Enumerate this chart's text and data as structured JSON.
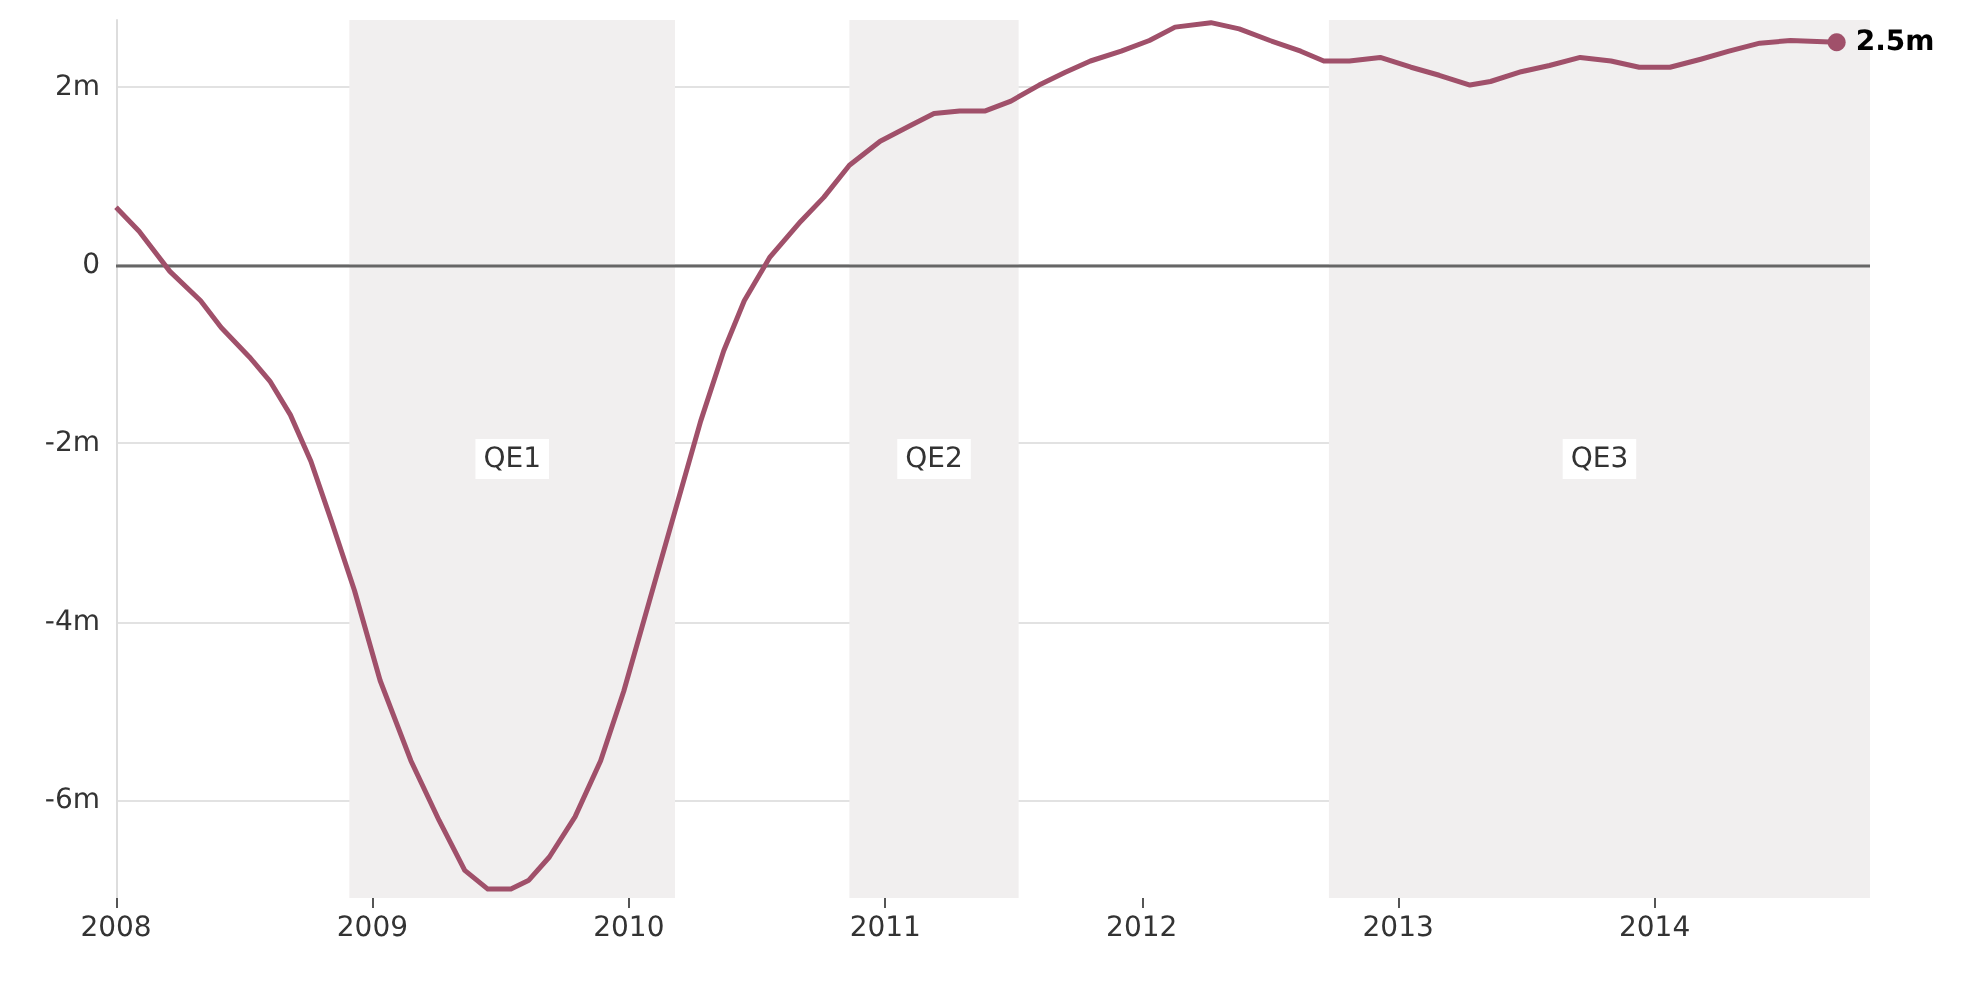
{
  "chart_data": {
    "type": "line",
    "x": [
      2008.0,
      2008.09,
      2008.21,
      2008.33,
      2008.41,
      2008.52,
      2008.6,
      2008.68,
      2008.76,
      2008.84,
      2008.93,
      2009.03,
      2009.15,
      2009.26,
      2009.36,
      2009.45,
      2009.54,
      2009.61,
      2009.69,
      2009.79,
      2009.89,
      2009.98,
      2010.08,
      2010.18,
      2010.28,
      2010.37,
      2010.45,
      2010.55,
      2010.67,
      2010.76,
      2010.86,
      2010.98,
      2011.1,
      2011.19,
      2011.29,
      2011.39,
      2011.49,
      2011.6,
      2011.7,
      2011.8,
      2011.92,
      2012.03,
      2012.13,
      2012.27,
      2012.38,
      2012.5,
      2012.62,
      2012.71,
      2012.81,
      2012.93,
      2013.05,
      2013.16,
      2013.28,
      2013.36,
      2013.48,
      2013.59,
      2013.71,
      2013.83,
      2013.94,
      2014.06,
      2014.18,
      2014.29,
      2014.41,
      2014.53,
      2014.71
    ],
    "series": [
      {
        "color": "#a0506a",
        "values": [
          0.65,
          0.38,
          -0.07,
          -0.4,
          -0.7,
          -1.03,
          -1.3,
          -1.68,
          -2.2,
          -2.87,
          -3.65,
          -4.66,
          -5.56,
          -6.23,
          -6.79,
          -7.0,
          -7.0,
          -6.9,
          -6.64,
          -6.19,
          -5.56,
          -4.78,
          -3.77,
          -2.76,
          -1.75,
          -0.96,
          -0.4,
          0.09,
          0.49,
          0.76,
          1.12,
          1.39,
          1.57,
          1.7,
          1.73,
          1.73,
          1.84,
          2.02,
          2.16,
          2.29,
          2.4,
          2.52,
          2.67,
          2.72,
          2.65,
          2.52,
          2.4,
          2.29,
          2.29,
          2.33,
          2.22,
          2.13,
          2.02,
          2.06,
          2.17,
          2.24,
          2.33,
          2.29,
          2.22,
          2.22,
          2.31,
          2.4,
          2.49,
          2.52,
          2.5
        ],
        "value_labels": [
          null,
          null,
          null,
          null,
          null,
          null,
          null,
          null,
          null,
          null,
          null,
          null,
          null,
          null,
          null,
          null,
          null,
          null,
          null,
          null,
          null,
          null,
          null,
          null,
          null,
          null,
          null,
          null,
          null,
          null,
          null,
          null,
          null,
          null,
          null,
          null,
          null,
          null,
          null,
          null,
          null,
          null,
          null,
          null,
          null,
          null,
          null,
          null,
          null,
          null,
          null,
          null,
          null,
          null,
          null,
          null,
          null,
          null,
          null,
          null,
          null,
          null,
          null,
          null,
          "2.5m"
        ]
      }
    ],
    "xlim": [
      2008,
      2014.84
    ],
    "xticks": [
      2008,
      2009,
      2010,
      2011,
      2012,
      2013,
      2014
    ],
    "ylim": [
      -7.1,
      2.75
    ],
    "yticks": [
      {
        "value": -6,
        "label": "-6m"
      },
      {
        "value": -4,
        "label": "-4m"
      },
      {
        "value": -2,
        "label": "-2m"
      },
      {
        "value": 0,
        "label": "0"
      },
      {
        "value": 2,
        "label": "2m"
      }
    ],
    "grid": "y",
    "ref_lines": [
      {
        "axis": "y",
        "value": 0,
        "color": "#666666"
      }
    ],
    "bands": [
      {
        "axis": "x",
        "from": 2008.91,
        "to": 2010.18,
        "label": "QE1",
        "color": "#f1efef"
      },
      {
        "axis": "x",
        "from": 2010.86,
        "to": 2011.52,
        "label": "QE2",
        "color": "#f1efef"
      },
      {
        "axis": "x",
        "from": 2012.73,
        "to": 2014.84,
        "label": "QE3",
        "color": "#f1efef"
      }
    ]
  }
}
